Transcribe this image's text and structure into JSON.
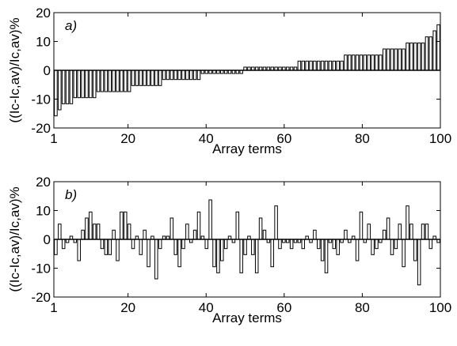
{
  "chart_data": [
    {
      "type": "bar",
      "panel_label": "a)",
      "xlabel": "Array terms",
      "ylabel": "((Ic-Ic,av)/Ic,av)%",
      "xlim": [
        1,
        100
      ],
      "ylim": [
        -20,
        20
      ],
      "xticks": [
        1,
        20,
        40,
        60,
        80,
        100
      ],
      "xtick_labels": [
        "1",
        "20",
        "40",
        "60",
        "80",
        "100"
      ],
      "yticks": [
        -20,
        -10,
        0,
        10,
        20
      ],
      "ytick_labels": [
        "-20",
        "-10",
        "0",
        "10",
        "20"
      ],
      "grid": false,
      "x": [
        1,
        2,
        3,
        4,
        5,
        6,
        7,
        8,
        9,
        10,
        11,
        12,
        13,
        14,
        15,
        16,
        17,
        18,
        19,
        20,
        21,
        22,
        23,
        24,
        25,
        26,
        27,
        28,
        29,
        30,
        31,
        32,
        33,
        34,
        35,
        36,
        37,
        38,
        39,
        40,
        41,
        42,
        43,
        44,
        45,
        46,
        47,
        48,
        49,
        50,
        51,
        52,
        53,
        54,
        55,
        56,
        57,
        58,
        59,
        60,
        61,
        62,
        63,
        64,
        65,
        66,
        67,
        68,
        69,
        70,
        71,
        72,
        73,
        74,
        75,
        76,
        77,
        78,
        79,
        80,
        81,
        82,
        83,
        84,
        85,
        86,
        87,
        88,
        89,
        90,
        91,
        92,
        93,
        94,
        95,
        96,
        97,
        98,
        99,
        100
      ],
      "values": [
        -15.8,
        -13.7,
        -11.6,
        -11.6,
        -11.6,
        -9.5,
        -9.5,
        -9.5,
        -9.5,
        -9.5,
        -9.5,
        -7.4,
        -7.4,
        -7.4,
        -7.4,
        -7.4,
        -7.4,
        -7.4,
        -7.4,
        -7.4,
        -5.3,
        -5.3,
        -5.3,
        -5.3,
        -5.3,
        -5.3,
        -5.3,
        -5.3,
        -3.2,
        -3.2,
        -3.2,
        -3.2,
        -3.2,
        -3.2,
        -3.2,
        -3.2,
        -3.2,
        -3.2,
        -1.1,
        -1.1,
        -1.1,
        -1.1,
        -1.1,
        -1.1,
        -1.1,
        -1.1,
        -1.1,
        -1.1,
        -1.1,
        1.1,
        1.1,
        1.1,
        1.1,
        1.1,
        1.1,
        1.1,
        1.1,
        1.1,
        1.1,
        1.1,
        1.1,
        1.1,
        1.1,
        3.2,
        3.2,
        3.2,
        3.2,
        3.2,
        3.2,
        3.2,
        3.2,
        3.2,
        3.2,
        3.2,
        3.2,
        5.3,
        5.3,
        5.3,
        5.3,
        5.3,
        5.3,
        5.3,
        5.3,
        5.3,
        5.3,
        7.4,
        7.4,
        7.4,
        7.4,
        7.4,
        7.4,
        9.5,
        9.5,
        9.5,
        9.5,
        9.5,
        11.6,
        11.6,
        13.7,
        15.8
      ]
    },
    {
      "type": "bar",
      "panel_label": "b)",
      "xlabel": "Array terms",
      "ylabel": "((Ic-Ic,av)/Ic,av)%",
      "xlim": [
        1,
        100
      ],
      "ylim": [
        -20,
        20
      ],
      "xticks": [
        1,
        20,
        40,
        60,
        80,
        100
      ],
      "xtick_labels": [
        "1",
        "20",
        "40",
        "60",
        "80",
        "100"
      ],
      "yticks": [
        -20,
        -10,
        0,
        10,
        20
      ],
      "ytick_labels": [
        "-20",
        "-10",
        "0",
        "10",
        "20"
      ],
      "grid": false,
      "x": [
        1,
        2,
        3,
        4,
        5,
        6,
        7,
        8,
        9,
        10,
        11,
        12,
        13,
        14,
        15,
        16,
        17,
        18,
        19,
        20,
        21,
        22,
        23,
        24,
        25,
        26,
        27,
        28,
        29,
        30,
        31,
        32,
        33,
        34,
        35,
        36,
        37,
        38,
        39,
        40,
        41,
        42,
        43,
        44,
        45,
        46,
        47,
        48,
        49,
        50,
        51,
        52,
        53,
        54,
        55,
        56,
        57,
        58,
        59,
        60,
        61,
        62,
        63,
        64,
        65,
        66,
        67,
        68,
        69,
        70,
        71,
        72,
        73,
        74,
        75,
        76,
        77,
        78,
        79,
        80,
        81,
        82,
        83,
        84,
        85,
        86,
        87,
        88,
        89,
        90,
        91,
        92,
        93,
        94,
        95,
        96,
        97,
        98,
        99,
        100
      ],
      "values": [
        -5.3,
        5.3,
        -3.2,
        -1.1,
        1.1,
        -1.1,
        -7.4,
        3.2,
        7.4,
        9.5,
        5.3,
        5.3,
        -3.2,
        -5.3,
        -5.3,
        3.2,
        -7.4,
        9.5,
        9.5,
        5.3,
        -3.2,
        1.1,
        -5.3,
        3.2,
        -9.5,
        1.1,
        -13.7,
        -3.2,
        1.1,
        1.1,
        7.4,
        -5.3,
        -9.5,
        -3.2,
        5.3,
        -1.1,
        3.2,
        9.5,
        1.1,
        -3.2,
        13.7,
        -9.5,
        -11.6,
        -7.4,
        -3.2,
        1.1,
        -1.1,
        9.5,
        -11.6,
        -5.3,
        1.1,
        -5.3,
        -11.6,
        7.4,
        3.2,
        -1.1,
        -9.5,
        11.6,
        -3.2,
        -1.1,
        -1.1,
        -3.2,
        -1.1,
        -1.1,
        -3.2,
        1.1,
        -1.1,
        3.2,
        -3.2,
        -7.4,
        -11.6,
        -1.1,
        -3.2,
        -5.3,
        -1.1,
        3.2,
        -1.1,
        1.1,
        -7.4,
        9.5,
        -1.1,
        5.3,
        -5.3,
        -3.2,
        -1.1,
        3.2,
        7.4,
        -5.3,
        -3.2,
        5.3,
        -9.5,
        11.6,
        5.3,
        -7.4,
        -15.8,
        5.3,
        5.3,
        -3.2,
        1.1,
        -1.1
      ]
    }
  ]
}
